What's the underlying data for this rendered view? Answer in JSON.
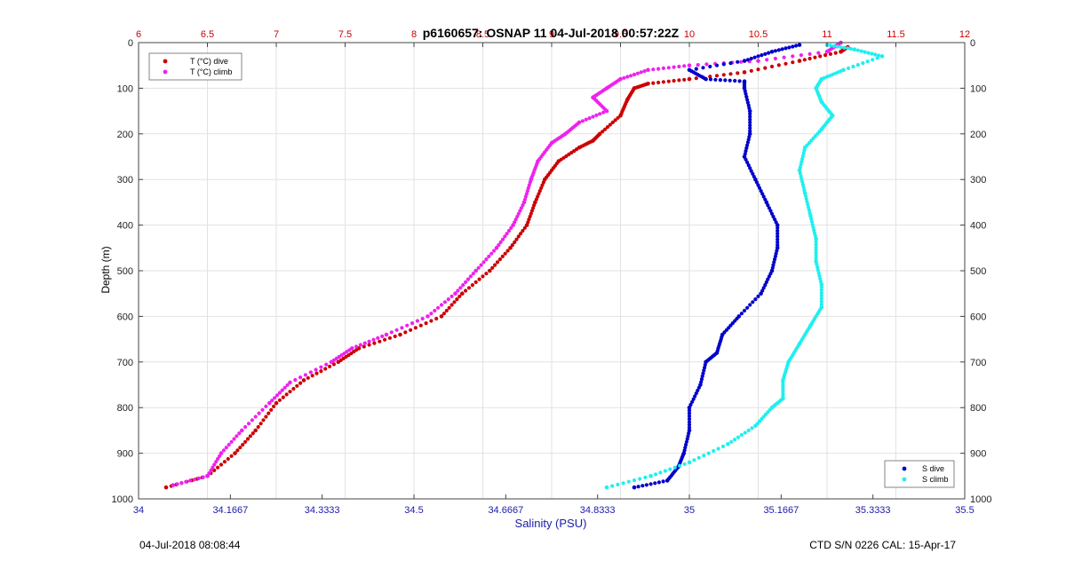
{
  "chart_data": {
    "type": "scatter",
    "title": "p6160657: OSNAP 11 04-Jul-2018 00:57:22Z",
    "ylabel": "Depth (m)",
    "xlabel_bottom": "Salinity (PSU)",
    "ylim": [
      0,
      1000
    ],
    "y_reversed": true,
    "xlim_top": [
      6,
      12
    ],
    "xlim_bottom": [
      34,
      35.5
    ],
    "top_ticks": [
      "6",
      "6.5",
      "7",
      "7.5",
      "8",
      "8.5",
      "9",
      "9.5",
      "10",
      "10.5",
      "11",
      "11.5",
      "12"
    ],
    "bottom_ticks": [
      "34",
      "34.1667",
      "34.3333",
      "34.5",
      "34.6667",
      "34.8333",
      "35",
      "35.1667",
      "35.3333",
      "35.5"
    ],
    "y_ticks": [
      "0",
      "100",
      "200",
      "300",
      "400",
      "500",
      "600",
      "700",
      "800",
      "900",
      "1000"
    ],
    "grid": true,
    "legend_top": {
      "placement": "top-left",
      "entries": [
        "T (°C) dive",
        "T (°C) climb"
      ]
    },
    "legend_bottom": {
      "placement": "bottom-right",
      "entries": [
        "S dive",
        "S climb"
      ]
    },
    "colors": {
      "t_dive": "#cc0000",
      "t_climb": "#ee22ee",
      "s_dive": "#0000cc",
      "s_climb": "#22eeee"
    },
    "series": [
      {
        "name": "T (°C) dive",
        "axis": "top",
        "points": [
          [
            11.15,
            10
          ],
          [
            11.1,
            20
          ],
          [
            10.8,
            40
          ],
          [
            10.4,
            65
          ],
          [
            10.0,
            80
          ],
          [
            9.7,
            90
          ],
          [
            9.6,
            100
          ],
          [
            9.55,
            125
          ],
          [
            9.5,
            160
          ],
          [
            9.35,
            200
          ],
          [
            9.3,
            215
          ],
          [
            9.2,
            230
          ],
          [
            9.05,
            260
          ],
          [
            8.95,
            300
          ],
          [
            8.88,
            350
          ],
          [
            8.82,
            400
          ],
          [
            8.7,
            450
          ],
          [
            8.55,
            500
          ],
          [
            8.35,
            550
          ],
          [
            8.2,
            600
          ],
          [
            7.9,
            640
          ],
          [
            7.6,
            670
          ],
          [
            7.45,
            700
          ],
          [
            7.2,
            740
          ],
          [
            7.0,
            790
          ],
          [
            6.85,
            850
          ],
          [
            6.7,
            900
          ],
          [
            6.5,
            950
          ],
          [
            6.2,
            975
          ]
        ]
      },
      {
        "name": "T (°C) climb",
        "axis": "top",
        "points": [
          [
            11.1,
            0
          ],
          [
            11.0,
            20
          ],
          [
            10.5,
            40
          ],
          [
            10.0,
            50
          ],
          [
            9.7,
            60
          ],
          [
            9.5,
            80
          ],
          [
            9.4,
            100
          ],
          [
            9.3,
            120
          ],
          [
            9.4,
            150
          ],
          [
            9.2,
            175
          ],
          [
            9.1,
            200
          ],
          [
            9.0,
            220
          ],
          [
            8.9,
            260
          ],
          [
            8.85,
            300
          ],
          [
            8.8,
            350
          ],
          [
            8.72,
            400
          ],
          [
            8.6,
            450
          ],
          [
            8.45,
            500
          ],
          [
            8.3,
            550
          ],
          [
            8.1,
            600
          ],
          [
            7.8,
            640
          ],
          [
            7.55,
            670
          ],
          [
            7.4,
            700
          ],
          [
            7.1,
            745
          ],
          [
            6.95,
            790
          ],
          [
            6.75,
            850
          ],
          [
            6.6,
            900
          ],
          [
            6.5,
            950
          ],
          [
            6.25,
            970
          ]
        ]
      },
      {
        "name": "S dive",
        "axis": "bottom",
        "points": [
          [
            35.2,
            5
          ],
          [
            35.15,
            20
          ],
          [
            35.1,
            40
          ],
          [
            35.0,
            60
          ],
          [
            35.03,
            80
          ],
          [
            35.1,
            85
          ],
          [
            35.1,
            100
          ],
          [
            35.11,
            150
          ],
          [
            35.11,
            200
          ],
          [
            35.1,
            250
          ],
          [
            35.12,
            300
          ],
          [
            35.14,
            350
          ],
          [
            35.16,
            400
          ],
          [
            35.16,
            450
          ],
          [
            35.15,
            500
          ],
          [
            35.13,
            550
          ],
          [
            35.09,
            600
          ],
          [
            35.06,
            640
          ],
          [
            35.05,
            680
          ],
          [
            35.03,
            700
          ],
          [
            35.02,
            750
          ],
          [
            35.0,
            800
          ],
          [
            35.0,
            850
          ],
          [
            34.99,
            900
          ],
          [
            34.98,
            930
          ],
          [
            34.96,
            960
          ],
          [
            34.9,
            975
          ]
        ]
      },
      {
        "name": "S climb",
        "axis": "bottom",
        "points": [
          [
            35.25,
            5
          ],
          [
            35.3,
            15
          ],
          [
            35.35,
            30
          ],
          [
            35.28,
            60
          ],
          [
            35.24,
            80
          ],
          [
            35.23,
            100
          ],
          [
            35.24,
            130
          ],
          [
            35.26,
            160
          ],
          [
            35.24,
            190
          ],
          [
            35.21,
            230
          ],
          [
            35.2,
            280
          ],
          [
            35.21,
            330
          ],
          [
            35.22,
            380
          ],
          [
            35.23,
            430
          ],
          [
            35.23,
            480
          ],
          [
            35.24,
            530
          ],
          [
            35.24,
            580
          ],
          [
            35.22,
            620
          ],
          [
            35.2,
            660
          ],
          [
            35.18,
            700
          ],
          [
            35.17,
            740
          ],
          [
            35.17,
            780
          ],
          [
            35.15,
            800
          ],
          [
            35.12,
            840
          ],
          [
            35.07,
            880
          ],
          [
            35.0,
            920
          ],
          [
            34.93,
            950
          ],
          [
            34.85,
            975
          ]
        ]
      }
    ]
  },
  "footer": {
    "left": "04-Jul-2018 08:08:44",
    "right": "CTD S/N 0226  CAL: 15-Apr-17"
  }
}
